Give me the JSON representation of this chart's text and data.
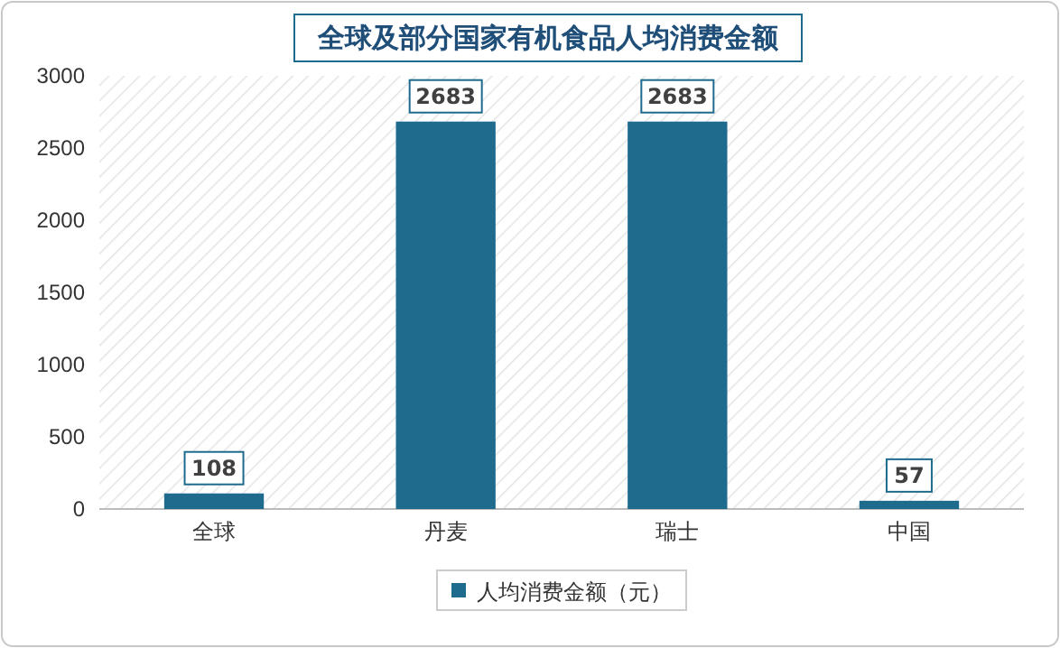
{
  "chart_data": {
    "type": "bar",
    "title": "全球及部分国家有机食品人均消费金额",
    "categories": [
      "全球",
      "丹麦",
      "瑞士",
      "中国"
    ],
    "series": [
      {
        "name": "人均消费金额（元）",
        "color": "#1f6b8e",
        "values": [
          108,
          2683,
          2683,
          57
        ]
      }
    ],
    "ylim": [
      0,
      3000
    ],
    "yticks": [
      0,
      500,
      1000,
      1500,
      2000,
      2500,
      3000
    ],
    "data_labels": true,
    "legend": "bottom",
    "grid": false
  }
}
